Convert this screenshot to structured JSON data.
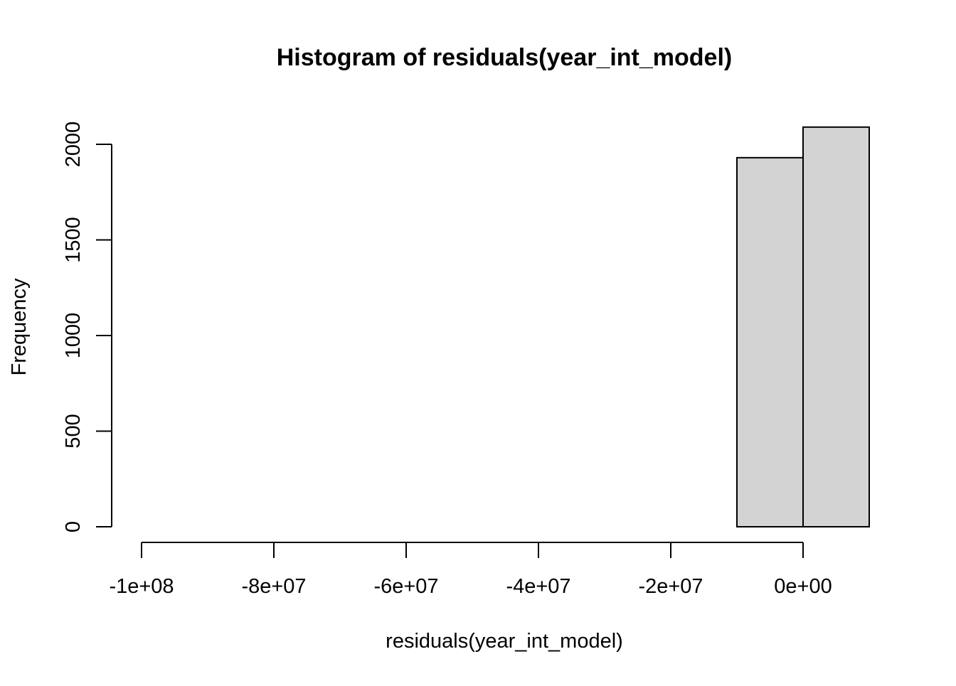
{
  "chart_data": {
    "type": "bar",
    "title": "Histogram of residuals(year_int_model)",
    "xlabel": "residuals(year_int_model)",
    "ylabel": "Frequency",
    "bins": [
      {
        "start": -100000000,
        "end": -90000000,
        "count": 0
      },
      {
        "start": -90000000,
        "end": -80000000,
        "count": 0
      },
      {
        "start": -80000000,
        "end": -70000000,
        "count": 0
      },
      {
        "start": -70000000,
        "end": -60000000,
        "count": 0
      },
      {
        "start": -60000000,
        "end": -50000000,
        "count": 0
      },
      {
        "start": -50000000,
        "end": -40000000,
        "count": 0
      },
      {
        "start": -40000000,
        "end": -30000000,
        "count": 0
      },
      {
        "start": -30000000,
        "end": -20000000,
        "count": 0
      },
      {
        "start": -20000000,
        "end": -10000000,
        "count": 0
      },
      {
        "start": -10000000,
        "end": 0,
        "count": 1930
      },
      {
        "start": 0,
        "end": 10000000,
        "count": 2090
      }
    ],
    "xlim": [
      -100000000,
      10000000
    ],
    "ylim": [
      0,
      2100
    ],
    "x_ticks": [
      {
        "value": -100000000,
        "label": "-1e+08"
      },
      {
        "value": -80000000,
        "label": "-8e+07"
      },
      {
        "value": -60000000,
        "label": "-6e+07"
      },
      {
        "value": -40000000,
        "label": "-4e+07"
      },
      {
        "value": -20000000,
        "label": "-2e+07"
      },
      {
        "value": 0,
        "label": "0e+00"
      }
    ],
    "y_ticks": [
      {
        "value": 0,
        "label": "0"
      },
      {
        "value": 500,
        "label": "500"
      },
      {
        "value": 1000,
        "label": "1000"
      },
      {
        "value": 1500,
        "label": "1500"
      },
      {
        "value": 2000,
        "label": "2000"
      }
    ],
    "grid": false,
    "legend": "none",
    "colors": {
      "bar_fill": "#d3d3d3",
      "bar_stroke": "#000000"
    }
  }
}
